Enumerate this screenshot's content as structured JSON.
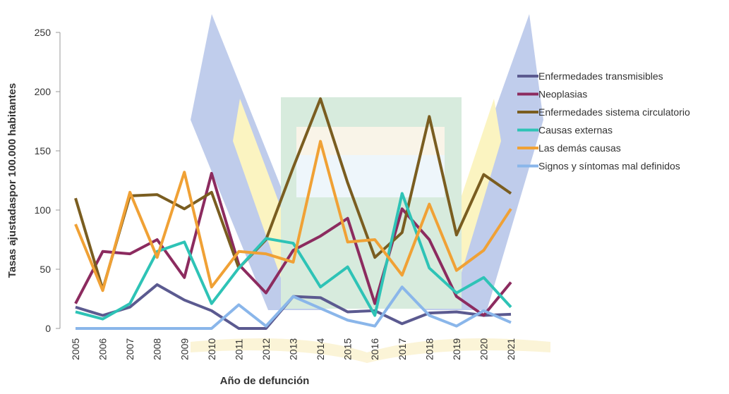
{
  "chart_data": {
    "type": "line",
    "y_label": "Tasas ajustadaspor 100.000 habitantes",
    "x_label": "Año de defunción",
    "categories": [
      "2005",
      "2006",
      "2007",
      "2008",
      "2009",
      "2010",
      "2011",
      "2012",
      "2013",
      "2014",
      "2015",
      "2016",
      "2017",
      "2018",
      "2019",
      "2020",
      "2021"
    ],
    "ylim": [
      0,
      250
    ],
    "yticks": [
      0,
      50,
      100,
      150,
      200,
      250
    ],
    "grid": false,
    "legend": "right",
    "series": [
      {
        "name": "Enfermedades transmisibles",
        "color": "#5b5a90",
        "values": [
          18,
          11,
          18,
          37,
          24,
          15,
          0,
          0,
          27,
          26,
          14,
          15,
          4,
          13,
          14,
          11,
          12
        ]
      },
      {
        "name": "Neoplasias",
        "color": "#8c2b5f",
        "values": [
          21,
          65,
          63,
          75,
          43,
          131,
          54,
          30,
          66,
          78,
          93,
          21,
          101,
          75,
          27,
          11,
          39
        ]
      },
      {
        "name": "Enfermedades sistema circulatorio",
        "color": "#7a5d20",
        "values": [
          110,
          33,
          112,
          113,
          101,
          115,
          51,
          75,
          136,
          194,
          123,
          60,
          81,
          179,
          79,
          130,
          114
        ]
      },
      {
        "name": "Causas externas",
        "color": "#2ec3b6",
        "values": [
          14,
          8,
          21,
          65,
          73,
          21,
          51,
          76,
          72,
          35,
          52,
          11,
          114,
          51,
          30,
          43,
          18
        ]
      },
      {
        "name": "Las demás causas",
        "color": "#f0a135",
        "values": [
          88,
          32,
          115,
          60,
          132,
          35,
          65,
          63,
          56,
          158,
          73,
          75,
          45,
          105,
          49,
          66,
          101
        ]
      },
      {
        "name": "Signos y síntomas mal definidos",
        "color": "#8ab6ea",
        "values": [
          0,
          0,
          0,
          0,
          0,
          0,
          20,
          2,
          27,
          17,
          7,
          2,
          35,
          11,
          2,
          15,
          5
        ]
      }
    ]
  }
}
